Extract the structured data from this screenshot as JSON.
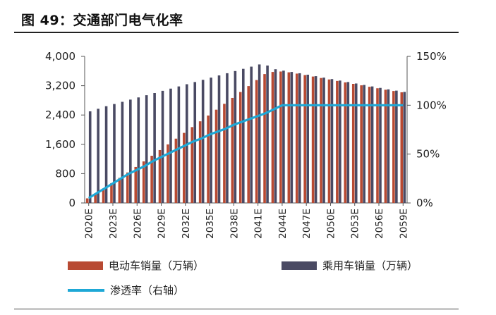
{
  "header": {
    "title": "图 49：交通部门电气化率"
  },
  "colors": {
    "ev": "#b84a33",
    "pv": "#4a4a63",
    "rate": "#1ea8d6"
  },
  "chart_data": {
    "type": "bar",
    "title": "图 49：交通部门电气化率",
    "x": [
      2020,
      2021,
      2022,
      2023,
      2024,
      2025,
      2026,
      2027,
      2028,
      2029,
      2030,
      2031,
      2032,
      2033,
      2034,
      2035,
      2036,
      2037,
      2038,
      2039,
      2040,
      2041,
      2042,
      2043,
      2044,
      2045,
      2046,
      2047,
      2048,
      2049,
      2050,
      2051,
      2052,
      2053,
      2054,
      2055,
      2056,
      2057,
      2058,
      2059
    ],
    "tick_labels": [
      "2020E",
      "2023E",
      "2026E",
      "2029E",
      "2032E",
      "2035E",
      "2038E",
      "2041E",
      "2044E",
      "2047E",
      "2050E",
      "2053E",
      "2056E",
      "2059E"
    ],
    "y_left_ticks": [
      "4,000",
      "3,200",
      "2,400",
      "1,600",
      "800",
      "0"
    ],
    "y_right_ticks": [
      "150%",
      "100%",
      "50%",
      "0%"
    ],
    "ylim_left": [
      0,
      4000
    ],
    "ylim_right": [
      0,
      150
    ],
    "series": [
      {
        "name": "电动车销量（万辆）",
        "axis": "left",
        "kind": "bar",
        "values": [
          125,
          256,
          397,
          540,
          685,
          832,
          982,
          1134,
          1288,
          1443,
          1598,
          1755,
          1912,
          2070,
          2228,
          2386,
          2545,
          2705,
          2866,
          3028,
          3190,
          3354,
          3517,
          3575,
          3587,
          3565,
          3530,
          3490,
          3450,
          3410,
          3370,
          3330,
          3290,
          3250,
          3210,
          3170,
          3130,
          3090,
          3055,
          3020
        ]
      },
      {
        "name": "乘用车销量（万辆）",
        "axis": "left",
        "kind": "bar",
        "values": [
          2500,
          2570,
          2640,
          2700,
          2760,
          2820,
          2880,
          2940,
          3000,
          3060,
          3120,
          3180,
          3240,
          3300,
          3360,
          3420,
          3480,
          3540,
          3600,
          3660,
          3720,
          3780,
          3750,
          3650,
          3610,
          3575,
          3540,
          3500,
          3460,
          3420,
          3380,
          3340,
          3300,
          3260,
          3220,
          3180,
          3140,
          3100,
          3065,
          3030
        ]
      },
      {
        "name": "渗透率（右轴）",
        "axis": "right",
        "kind": "line",
        "values": [
          5,
          10,
          15,
          20,
          25,
          30,
          34,
          38,
          43,
          47,
          51,
          55,
          59,
          63,
          66,
          70,
          73,
          76,
          80,
          83,
          86,
          89,
          92,
          96,
          100,
          100,
          100,
          100,
          100,
          100,
          100,
          100,
          100,
          100,
          100,
          100,
          100,
          100,
          100,
          100
        ]
      }
    ]
  },
  "legend": {
    "ev": "电动车销量（万辆）",
    "pv": "乘用车销量（万辆）",
    "rate": "渗透率（右轴）"
  }
}
